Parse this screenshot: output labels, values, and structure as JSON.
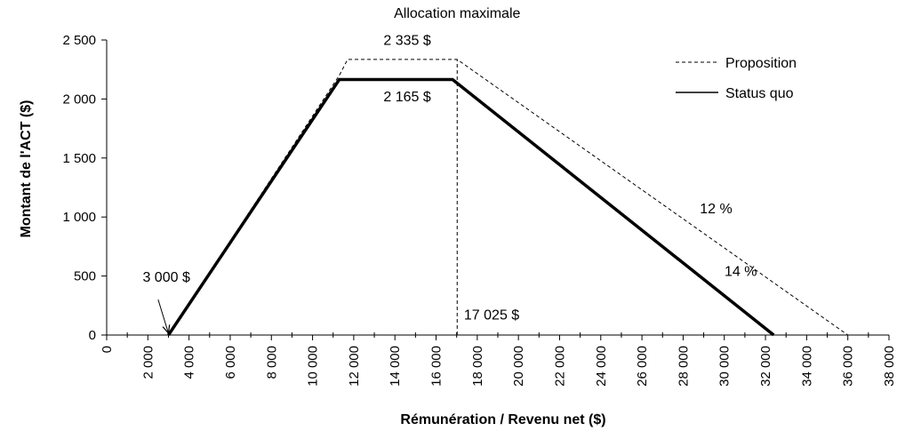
{
  "chart_data": {
    "type": "line",
    "title": "",
    "xlabel": "Rémunération / Revenu net ($)",
    "ylabel": "Montant de l'ACT ($)",
    "xlim": [
      0,
      38000
    ],
    "ylim": [
      0,
      2500
    ],
    "x_ticks": [
      0,
      2000,
      4000,
      6000,
      8000,
      10000,
      12000,
      14000,
      16000,
      18000,
      20000,
      22000,
      24000,
      26000,
      28000,
      30000,
      32000,
      34000,
      36000,
      38000
    ],
    "x_tick_labels": [
      "0",
      "2 000",
      "4 000",
      "6 000",
      "8 000",
      "10 000",
      "12 000",
      "14 000",
      "16 000",
      "18 000",
      "20 000",
      "22 000",
      "24 000",
      "26 000",
      "28 000",
      "30 000",
      "32 000",
      "34 000",
      "36 000",
      "38 000"
    ],
    "y_ticks": [
      0,
      500,
      1000,
      1500,
      2000,
      2500
    ],
    "y_tick_labels": [
      "0",
      "500",
      "1 000",
      "1 500",
      "2 000",
      "2 500"
    ],
    "grid": false,
    "legend_position": "top-right",
    "series": [
      {
        "name": "Proposition",
        "style": "dashed",
        "color": "#000000",
        "points": [
          [
            3000,
            0
          ],
          [
            11300,
            2200
          ],
          [
            11700,
            2335
          ],
          [
            17025,
            2335
          ],
          [
            36000,
            0
          ]
        ]
      },
      {
        "name": "Status quo",
        "style": "solid",
        "color": "#000000",
        "points": [
          [
            3000,
            0
          ],
          [
            11300,
            2165
          ],
          [
            16800,
            2165
          ],
          [
            32400,
            0
          ]
        ]
      }
    ],
    "reference_lines": [
      {
        "style": "dashed",
        "points": [
          [
            17025,
            0
          ],
          [
            17025,
            2335
          ]
        ]
      }
    ],
    "annotations": [
      {
        "text": "Allocation maximale",
        "x": 17025,
        "y": 2690
      },
      {
        "text": "2 335 $",
        "x": 14600,
        "y": 2460
      },
      {
        "text": "2 165 $",
        "x": 14600,
        "y": 1980
      },
      {
        "text": "3 000 $",
        "x": 2900,
        "y": 450
      },
      {
        "text": "17 025 $",
        "x": 18700,
        "y": 130
      },
      {
        "text": "12 %",
        "x": 29600,
        "y": 1030
      },
      {
        "text": "14 %",
        "x": 30800,
        "y": 500
      }
    ],
    "arrow": {
      "from": [
        2500,
        300
      ],
      "to": [
        3000,
        0
      ]
    }
  }
}
